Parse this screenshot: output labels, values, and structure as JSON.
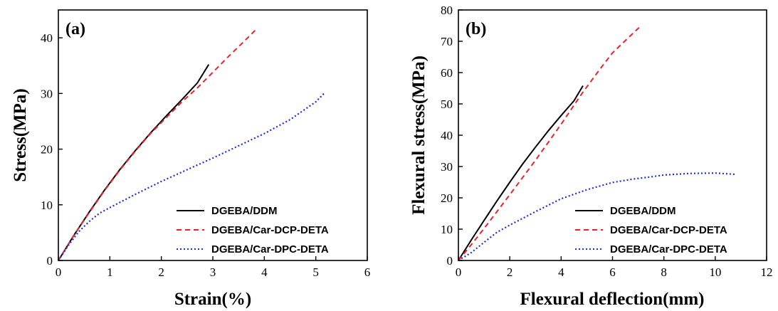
{
  "chart_data": [
    {
      "type": "line",
      "panel_label": "(a)",
      "xlabel": "Strain(%)",
      "ylabel": "Stress(MPa)",
      "xlim": [
        0,
        6
      ],
      "ylim": [
        0,
        45
      ],
      "x_ticks": [
        0,
        1,
        2,
        3,
        4,
        5,
        6
      ],
      "y_ticks": [
        0,
        10,
        20,
        30,
        40
      ],
      "legend_position": "bottom-right",
      "grid": false,
      "series": [
        {
          "name": "DGEBA/DDM",
          "color": "#000000",
          "style": "solid",
          "x": [
            0,
            0.3,
            0.6,
            0.9,
            1.2,
            1.5,
            1.8,
            2.1,
            2.4,
            2.7,
            2.92
          ],
          "y": [
            0,
            4.5,
            8.7,
            12.7,
            16.4,
            19.8,
            23.0,
            26.0,
            28.9,
            31.9,
            35.2
          ]
        },
        {
          "name": "DGEBA/Car-DCP-DETA",
          "color": "#e8232b",
          "style": "dashed",
          "x": [
            0,
            0.3,
            0.6,
            0.9,
            1.2,
            1.5,
            1.8,
            2.1,
            2.4,
            2.7,
            3.0,
            3.3,
            3.6,
            3.84
          ],
          "y": [
            0,
            4.5,
            8.6,
            12.6,
            16.3,
            19.7,
            22.9,
            25.7,
            28.5,
            31.0,
            33.8,
            36.6,
            39.3,
            41.5
          ]
        },
        {
          "name": "DGEBA/Car-DPC-DETA",
          "color": "#1f2fd6",
          "style": "dotted",
          "x": [
            0,
            0.2,
            0.4,
            0.6,
            0.8,
            1.0,
            1.5,
            2.0,
            2.5,
            3.0,
            3.5,
            4.0,
            4.5,
            5.0,
            5.18
          ],
          "y": [
            0,
            2.8,
            5.2,
            7.0,
            8.5,
            9.5,
            11.9,
            14.2,
            16.3,
            18.4,
            20.6,
            22.8,
            25.3,
            28.5,
            30.2
          ]
        }
      ]
    },
    {
      "type": "line",
      "panel_label": "(b)",
      "xlabel": "Flexural deflection(mm)",
      "ylabel": "Flexural stress(MPa)",
      "xlim": [
        0,
        12
      ],
      "ylim": [
        0,
        80
      ],
      "x_ticks": [
        0,
        2,
        4,
        6,
        8,
        10,
        12
      ],
      "y_ticks": [
        0,
        10,
        20,
        30,
        40,
        50,
        60,
        70,
        80
      ],
      "legend_position": "bottom-right",
      "grid": false,
      "series": [
        {
          "name": "DGEBA/DDM",
          "color": "#000000",
          "style": "solid",
          "x": [
            0,
            0.5,
            1.0,
            1.5,
            2.0,
            2.5,
            3.0,
            3.5,
            4.0,
            4.5,
            4.85
          ],
          "y": [
            0,
            6.5,
            12.8,
            19.0,
            25.0,
            30.8,
            36.2,
            41.4,
            46.3,
            51.0,
            55.8
          ]
        },
        {
          "name": "DGEBA/Car-DCP-DETA",
          "color": "#e8232b",
          "style": "dashed",
          "x": [
            0,
            0.5,
            1.0,
            2.0,
            3.0,
            4.0,
            4.8,
            5.5,
            6.0,
            6.5,
            7.05
          ],
          "y": [
            0,
            5.0,
            10.2,
            21.0,
            32.0,
            43.5,
            53.2,
            61.0,
            66.3,
            70.2,
            74.5
          ]
        },
        {
          "name": "DGEBA/Car-DPC-DETA",
          "color": "#1f2fd6",
          "style": "dotted",
          "x": [
            0,
            0.5,
            1.0,
            1.5,
            2.0,
            3.0,
            4.0,
            5.0,
            6.0,
            6.8,
            7.5,
            8.0,
            9.0,
            10.0,
            10.8
          ],
          "y": [
            0,
            2.5,
            5.8,
            9.0,
            11.3,
            15.6,
            19.7,
            22.6,
            24.9,
            26.0,
            26.7,
            27.3,
            27.8,
            27.9,
            27.5
          ]
        }
      ]
    }
  ]
}
